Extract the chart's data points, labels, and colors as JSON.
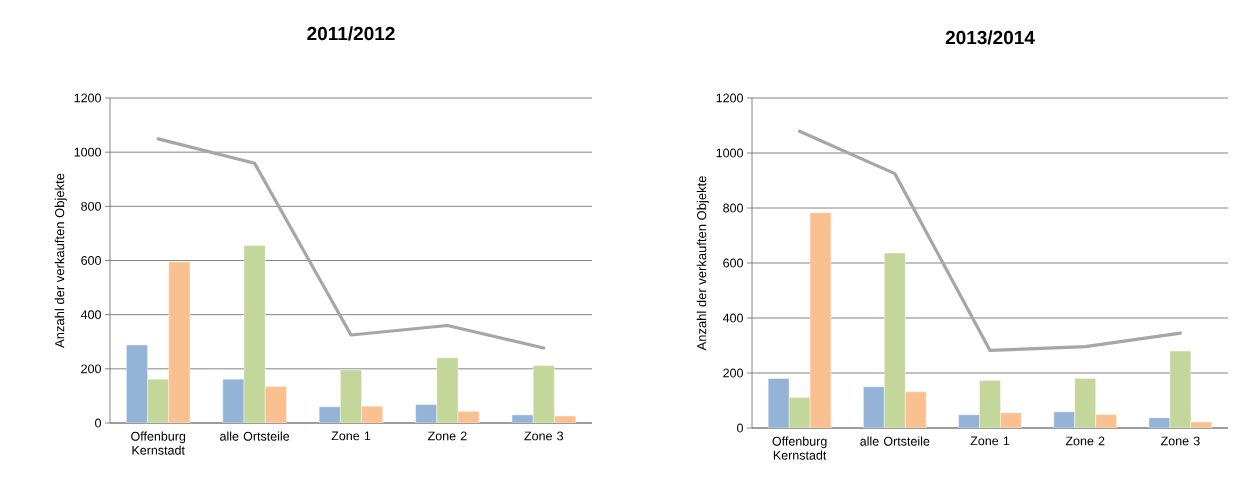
{
  "chart_data": [
    {
      "type": "bar",
      "title": "2011/2012",
      "ylabel": "Anzahl der verkauften Objekte",
      "categories": [
        "Offenburg Kernstadt",
        "alle Ortsteile",
        "Zone 1",
        "Zone 2",
        "Zone 3"
      ],
      "series": [
        {
          "color": "#95b3d7",
          "values": [
            288,
            162,
            60,
            68,
            30
          ]
        },
        {
          "color": "#c4d79b",
          "values": [
            162,
            655,
            196,
            241,
            212
          ]
        },
        {
          "color": "#fac090",
          "values": [
            595,
            135,
            62,
            43,
            26
          ]
        },
        {
          "type": "line",
          "color": "#a6a6a6",
          "values": [
            1049,
            959,
            325,
            360,
            277
          ]
        }
      ],
      "ylim": [
        0,
        1200
      ],
      "yticks": [
        0,
        200,
        400,
        600,
        800,
        1000,
        1200
      ],
      "grid": "y"
    },
    {
      "type": "bar",
      "title": "2013/2014",
      "ylabel": "Anzahl der verkauften Objekte",
      "categories": [
        "Offenburg Kernstadt",
        "alle Ortsteile",
        "Zone 1",
        "Zone 2",
        "Zone 3"
      ],
      "series": [
        {
          "color": "#95b3d7",
          "values": [
            180,
            150,
            48,
            59,
            37
          ]
        },
        {
          "color": "#c4d79b",
          "values": [
            111,
            636,
            173,
            180,
            280
          ]
        },
        {
          "color": "#fac090",
          "values": [
            783,
            132,
            55,
            49,
            22
          ]
        },
        {
          "type": "line",
          "color": "#a6a6a6",
          "values": [
            1079,
            925,
            282,
            296,
            345
          ]
        }
      ],
      "ylim": [
        0,
        1200
      ],
      "yticks": [
        0,
        200,
        400,
        600,
        800,
        1000,
        1200
      ],
      "grid": "y"
    }
  ]
}
